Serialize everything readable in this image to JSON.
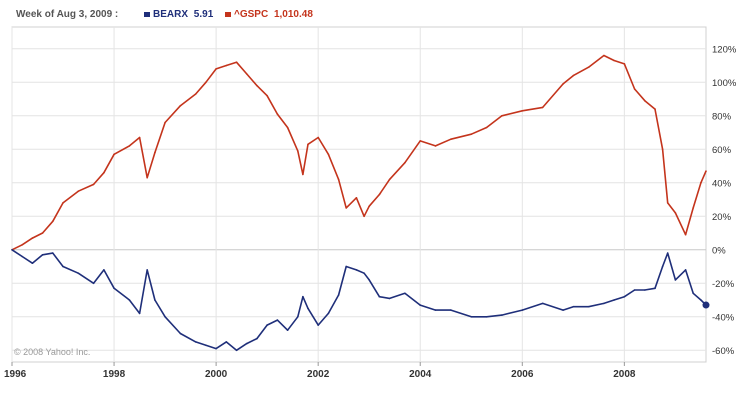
{
  "header": {
    "period_label": "Week of Aug 3, 2009 :",
    "legend": [
      {
        "symbol": "BEARX",
        "value": "5.91",
        "color": "#1f2f7a"
      },
      {
        "symbol": "^GSPC",
        "value": "1,010.48",
        "color": "#c4341c"
      }
    ]
  },
  "copyright": "© 2008 Yahoo! Inc.",
  "chart_data": {
    "type": "line",
    "title": "",
    "xlabel": "",
    "ylabel": "",
    "x_ticks": [
      "1996",
      "1998",
      "2000",
      "2002",
      "2004",
      "2006",
      "2008"
    ],
    "y_ticks": [
      "120%",
      "100%",
      "80%",
      "60%",
      "40%",
      "20%",
      "0%",
      "-20%",
      "-40%",
      "-60%"
    ],
    "ylim": [
      -67,
      133
    ],
    "xlim": [
      1996.0,
      2009.6
    ],
    "grid": true,
    "legend_position": "top-left",
    "series": [
      {
        "name": "^GSPC",
        "color": "#c4341c",
        "x": [
          1996.0,
          1996.2,
          1996.4,
          1996.6,
          1996.8,
          1997.0,
          1997.3,
          1997.6,
          1997.8,
          1998.0,
          1998.3,
          1998.5,
          1998.65,
          1998.8,
          1999.0,
          1999.3,
          1999.6,
          1999.8,
          2000.0,
          2000.2,
          2000.4,
          2000.6,
          2000.8,
          2001.0,
          2001.2,
          2001.4,
          2001.6,
          2001.7,
          2001.8,
          2002.0,
          2002.2,
          2002.4,
          2002.55,
          2002.75,
          2002.9,
          2003.0,
          2003.2,
          2003.4,
          2003.7,
          2004.0,
          2004.3,
          2004.6,
          2005.0,
          2005.3,
          2005.6,
          2006.0,
          2006.4,
          2006.8,
          2007.0,
          2007.3,
          2007.6,
          2007.8,
          2008.0,
          2008.2,
          2008.4,
          2008.6,
          2008.75,
          2008.85,
          2009.0,
          2009.2,
          2009.35,
          2009.5,
          2009.6
        ],
        "values": [
          0,
          3,
          7,
          10,
          17,
          28,
          35,
          39,
          46,
          57,
          62,
          67,
          43,
          58,
          76,
          86,
          93,
          100,
          108,
          110,
          112,
          105,
          98,
          92,
          81,
          73,
          59,
          45,
          63,
          67,
          57,
          42,
          25,
          31,
          20,
          26,
          33,
          42,
          52,
          65,
          62,
          66,
          69,
          73,
          80,
          83,
          85,
          99,
          104,
          109,
          116,
          113,
          111,
          96,
          89,
          84,
          60,
          28,
          22,
          9,
          25,
          40,
          47
        ]
      },
      {
        "name": "BEARX",
        "color": "#1f2f7a",
        "x": [
          1996.0,
          1996.2,
          1996.4,
          1996.6,
          1996.8,
          1997.0,
          1997.3,
          1997.6,
          1997.8,
          1998.0,
          1998.3,
          1998.5,
          1998.65,
          1998.8,
          1999.0,
          1999.3,
          1999.6,
          1999.8,
          2000.0,
          2000.2,
          2000.4,
          2000.6,
          2000.8,
          2001.0,
          2001.2,
          2001.4,
          2001.6,
          2001.7,
          2001.8,
          2002.0,
          2002.2,
          2002.4,
          2002.55,
          2002.75,
          2002.9,
          2003.0,
          2003.2,
          2003.4,
          2003.7,
          2004.0,
          2004.3,
          2004.6,
          2005.0,
          2005.3,
          2005.6,
          2006.0,
          2006.4,
          2006.8,
          2007.0,
          2007.3,
          2007.6,
          2007.8,
          2008.0,
          2008.2,
          2008.4,
          2008.6,
          2008.75,
          2008.85,
          2009.0,
          2009.2,
          2009.35,
          2009.5,
          2009.6
        ],
        "values": [
          0,
          -4,
          -8,
          -3,
          -2,
          -10,
          -14,
          -20,
          -12,
          -23,
          -30,
          -38,
          -12,
          -30,
          -40,
          -50,
          -55,
          -57,
          -59,
          -55,
          -60,
          -56,
          -53,
          -45,
          -42,
          -48,
          -40,
          -28,
          -35,
          -45,
          -38,
          -27,
          -10,
          -12,
          -14,
          -18,
          -28,
          -29,
          -26,
          -33,
          -36,
          -36,
          -40,
          -40,
          -39,
          -36,
          -32,
          -36,
          -34,
          -34,
          -32,
          -30,
          -28,
          -24,
          -24,
          -23,
          -10,
          -2,
          -18,
          -12,
          -26,
          -30,
          -33
        ]
      }
    ]
  }
}
